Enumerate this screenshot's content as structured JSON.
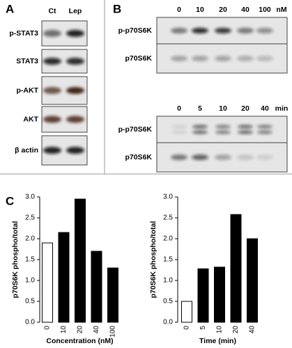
{
  "panels": {
    "a": {
      "label": "A",
      "columns": [
        "Ct",
        "Lep"
      ],
      "rows": [
        "p-STAT3",
        "STAT3",
        "p-AKT",
        "AKT",
        "β actin"
      ]
    },
    "b": {
      "label": "B",
      "top": {
        "lanes": [
          "0",
          "10",
          "20",
          "40",
          "100"
        ],
        "unit": "nM",
        "rows": [
          "p-p70S6K",
          "p70S6K"
        ]
      },
      "bottom": {
        "lanes": [
          "0",
          "5",
          "10",
          "20",
          "40"
        ],
        "unit": "min",
        "rows": [
          "p-p70S6K",
          "p70S6K"
        ]
      }
    },
    "c": {
      "label": "C"
    }
  },
  "chart_data": [
    {
      "type": "bar",
      "y_label": "p70S6K phospho/total",
      "x_label": "Concentration (nM)",
      "categories": [
        "0",
        "10",
        "20",
        "40",
        "100"
      ],
      "values": [
        1.9,
        2.15,
        2.95,
        1.7,
        1.3
      ],
      "colors": [
        "#ffffff",
        "#000000",
        "#000000",
        "#000000",
        "#000000"
      ],
      "ylim": [
        0,
        3
      ],
      "yticks": [
        {
          "value": 0,
          "label": "0.0"
        },
        {
          "value": 0.5,
          "label": "0.5"
        },
        {
          "value": 1,
          "label": "1.0"
        },
        {
          "value": 1.5,
          "label": "1.5"
        },
        {
          "value": 2,
          "label": "2.0"
        },
        {
          "value": 2.5,
          "label": "2.5"
        },
        {
          "value": 3,
          "label": "3.0"
        }
      ]
    },
    {
      "type": "bar",
      "y_label": "p70S6K phospho/total",
      "x_label": "Time (min)",
      "categories": [
        "0",
        "5",
        "10",
        "20",
        "40"
      ],
      "values": [
        0.5,
        1.28,
        1.32,
        2.58,
        2.0
      ],
      "colors": [
        "#ffffff",
        "#000000",
        "#000000",
        "#000000",
        "#000000"
      ],
      "ylim": [
        0,
        3
      ],
      "yticks": [
        {
          "value": 0,
          "label": "0.0"
        },
        {
          "value": 0.5,
          "label": "0.5"
        },
        {
          "value": 1,
          "label": "1.0"
        },
        {
          "value": 1.5,
          "label": "1.5"
        },
        {
          "value": 2,
          "label": "2.0"
        },
        {
          "value": 2.5,
          "label": "2.5"
        },
        {
          "value": 3,
          "label": "3.0"
        }
      ]
    }
  ]
}
